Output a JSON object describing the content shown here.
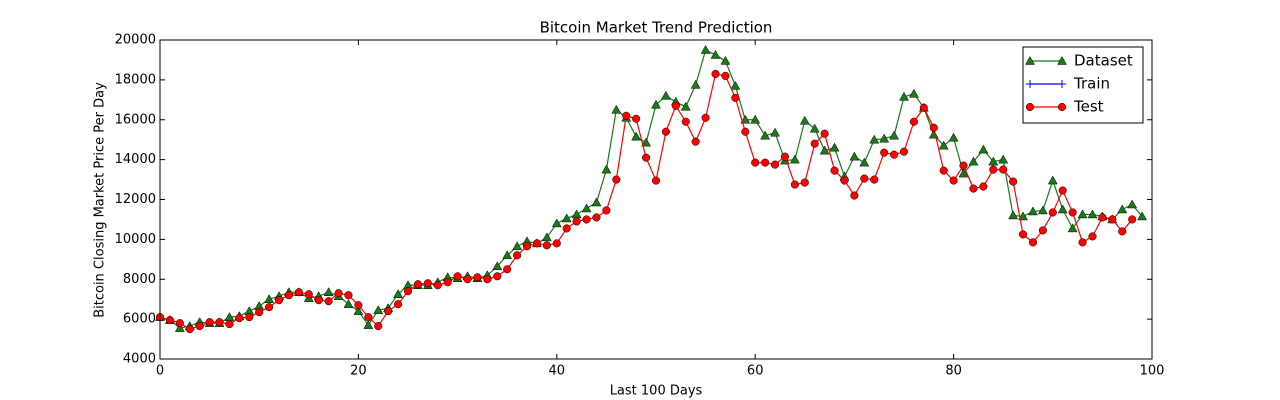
{
  "chart_data": {
    "type": "line",
    "title": "Bitcoin Market Trend Prediction",
    "x_label": "Last 100 Days",
    "y_label": "Bitcoin Closing Market Price Per Day",
    "xlim": [
      0,
      100
    ],
    "ylim": [
      4000,
      20000
    ],
    "xticks": [
      0,
      20,
      40,
      60,
      80,
      100
    ],
    "yticks": [
      4000,
      6000,
      8000,
      10000,
      12000,
      14000,
      16000,
      18000,
      20000
    ],
    "legend": "upper right",
    "x": [
      0,
      1,
      2,
      3,
      4,
      5,
      6,
      7,
      8,
      9,
      10,
      11,
      12,
      13,
      14,
      15,
      16,
      17,
      18,
      19,
      20,
      21,
      22,
      23,
      24,
      25,
      26,
      27,
      28,
      29,
      30,
      31,
      32,
      33,
      34,
      35,
      36,
      37,
      38,
      39,
      40,
      41,
      42,
      43,
      44,
      45,
      46,
      47,
      48,
      49,
      50,
      51,
      52,
      53,
      54,
      55,
      56,
      57,
      58,
      59,
      60,
      61,
      62,
      63,
      64,
      65,
      66,
      67,
      68,
      69,
      70,
      71,
      72,
      73,
      74,
      75,
      76,
      77,
      78,
      79,
      80,
      81,
      82,
      83,
      84,
      85,
      86,
      87,
      88,
      89,
      90,
      91,
      92,
      93,
      94,
      95,
      96,
      97,
      98,
      99
    ],
    "series": [
      {
        "name": "Dataset",
        "color": "#1a7a1a",
        "marker": "triangle",
        "values": [
          6100,
          5950,
          5550,
          5650,
          5850,
          5800,
          5800,
          6100,
          6150,
          6400,
          6650,
          7000,
          7150,
          7350,
          7350,
          7050,
          7150,
          7350,
          7150,
          6750,
          6400,
          5700,
          6450,
          6550,
          7250,
          7700,
          7700,
          7700,
          7850,
          8100,
          8050,
          8150,
          8050,
          8200,
          8650,
          9200,
          9650,
          9900,
          9800,
          10100,
          10800,
          11050,
          11250,
          11550,
          11850,
          13500,
          16500,
          16100,
          15150,
          14850,
          16750,
          17200,
          16900,
          16650,
          17750,
          19500,
          19250,
          18950,
          17700,
          16000,
          16000,
          15200,
          15350,
          13950,
          14000,
          15950,
          15550,
          14450,
          14600,
          13150,
          14150,
          13850,
          15000,
          15050,
          15200,
          17150,
          17300,
          16600,
          15250,
          14700,
          15100,
          13300,
          13900,
          14500,
          13900,
          14000,
          11200,
          11150,
          11400,
          11450,
          12950,
          11500,
          10550,
          11250,
          11250,
          11150,
          11000,
          11500,
          11750,
          11150
        ]
      },
      {
        "name": "Train",
        "color": "#0000ff",
        "marker": "plus",
        "values": [
          null,
          null,
          null,
          null,
          null,
          null,
          null,
          null,
          null,
          null,
          null,
          null,
          null,
          null,
          null,
          null,
          null,
          null,
          null,
          null,
          null,
          null,
          null,
          null,
          null,
          null,
          null,
          null,
          null,
          null,
          null,
          null,
          null,
          null,
          null,
          null,
          null,
          null,
          null,
          null,
          null,
          null,
          null,
          null,
          null,
          null,
          null,
          null,
          null,
          null,
          null,
          null,
          null,
          null,
          null,
          null,
          null,
          null,
          null,
          null,
          null,
          null,
          null,
          null,
          null,
          null,
          null,
          null,
          null,
          null,
          null,
          null,
          null,
          null,
          null,
          null,
          null,
          null,
          null,
          null,
          null,
          null,
          null,
          null,
          null,
          null,
          null,
          null,
          null,
          null,
          null,
          null,
          null,
          null,
          null,
          null,
          null,
          null,
          null,
          null
        ]
      },
      {
        "name": "Test",
        "color": "#ff0000",
        "marker": "circle",
        "values": [
          6100,
          5950,
          5800,
          5500,
          5650,
          5850,
          5850,
          5750,
          6050,
          6100,
          6350,
          6600,
          6950,
          7200,
          7350,
          7250,
          6950,
          6900,
          7300,
          7200,
          6700,
          6100,
          5650,
          6400,
          6750,
          7400,
          7750,
          7800,
          7700,
          7850,
          8150,
          8000,
          8100,
          8000,
          8150,
          8500,
          9200,
          9650,
          9800,
          9700,
          9800,
          10550,
          10900,
          11000,
          11100,
          11450,
          13000,
          16200,
          16050,
          14100,
          12950,
          15400,
          16700,
          15900,
          14900,
          16100,
          18300,
          18200,
          17100,
          15400,
          13850,
          13850,
          13750,
          14150,
          12750,
          12850,
          14800,
          15300,
          13450,
          12950,
          12200,
          13050,
          13000,
          14350,
          14250,
          14400,
          15900,
          16600,
          15600,
          13450,
          12950,
          13700,
          12550,
          12650,
          13500,
          13500,
          12900,
          10250,
          9850,
          10450,
          11350,
          12450,
          11350,
          9850,
          10150,
          11100,
          11000,
          10400,
          11000,
          null
        ]
      }
    ]
  }
}
